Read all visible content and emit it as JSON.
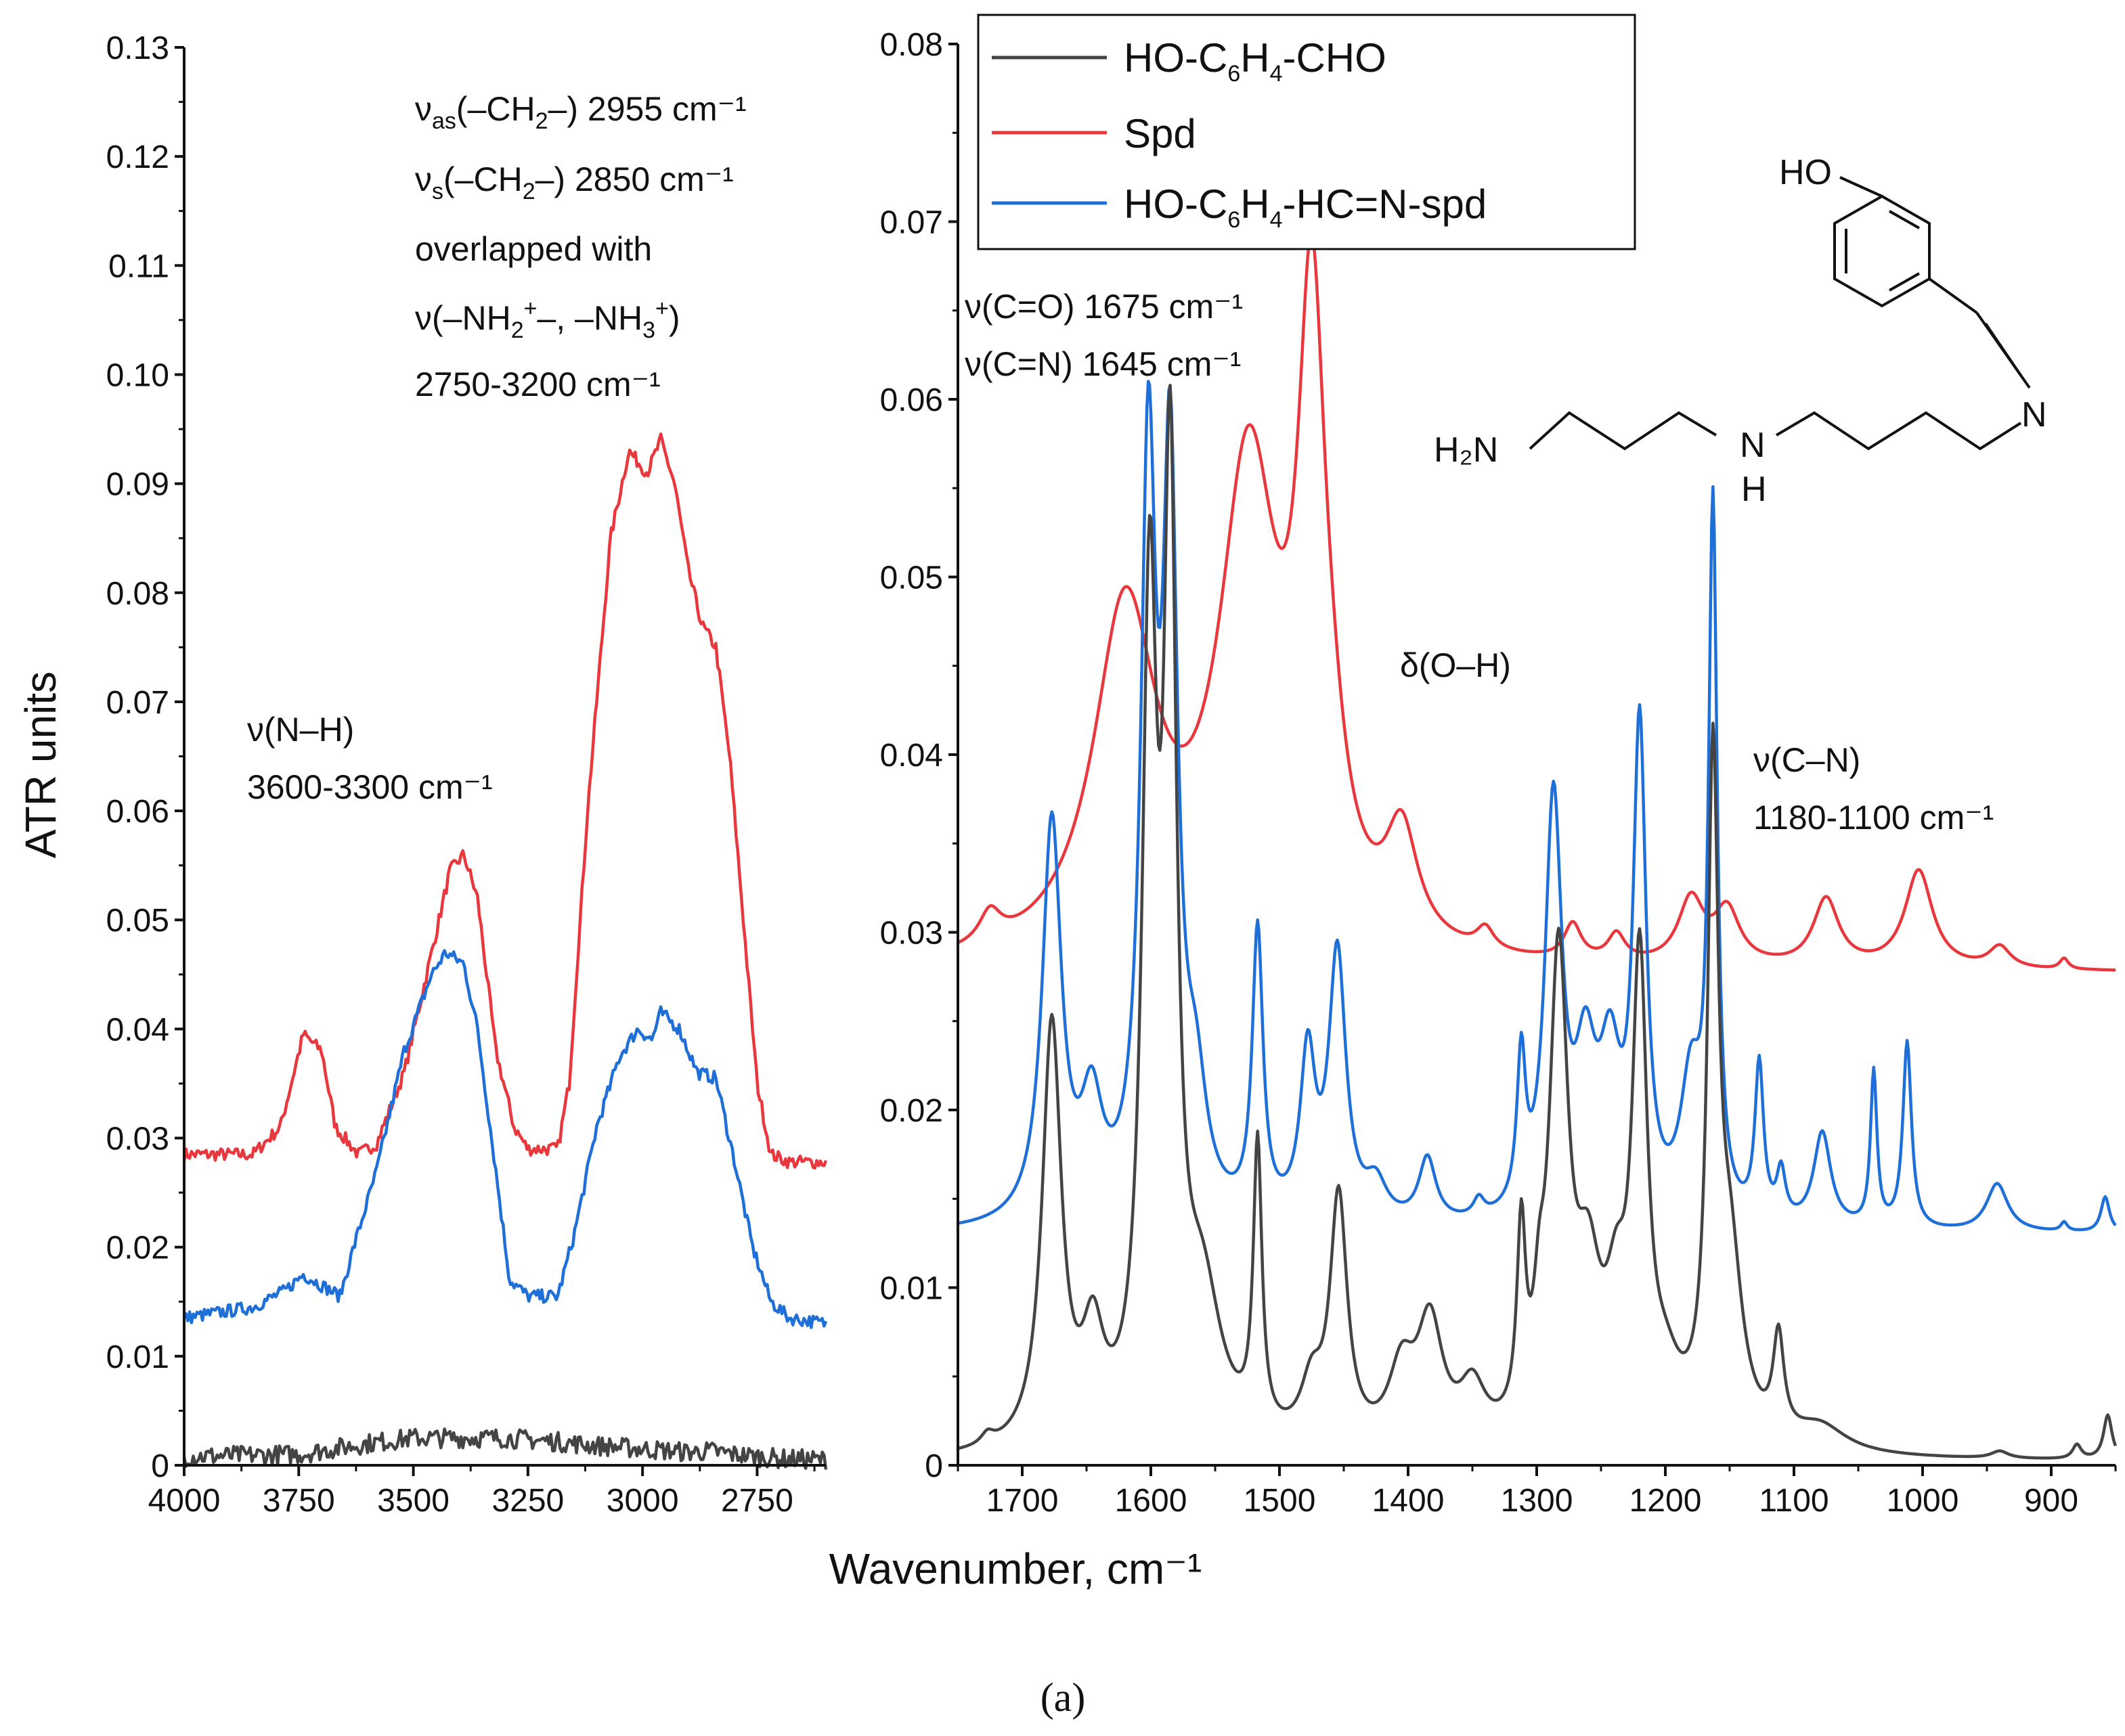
{
  "chart_data": {
    "type": "line",
    "ylabel": "ATR units",
    "xlabel": "Wavenumber, cm⁻¹",
    "panel_label": "(a)",
    "ylim_left": [
      0,
      0.13
    ],
    "ylim_right": [
      0,
      0.08
    ],
    "xlim_left": [
      4000,
      2600
    ],
    "xlim_right": [
      1750,
      850
    ],
    "yticks_left": [
      "0",
      "0.01",
      "0.02",
      "0.03",
      "0.04",
      "0.05",
      "0.06",
      "0.07",
      "0.08",
      "0.09",
      "0.10",
      "0.11",
      "0.12",
      "0.13"
    ],
    "yticks_right": [
      "0",
      "0.01",
      "0.02",
      "0.03",
      "0.04",
      "0.05",
      "0.06",
      "0.07",
      "0.08"
    ],
    "xticks_left": [
      "4000",
      "3750",
      "3500",
      "3250",
      "3000",
      "2750"
    ],
    "xticks_right": [
      "1700",
      "1600",
      "1500",
      "1400",
      "1300",
      "1200",
      "1100",
      "1000",
      "900"
    ],
    "legend": [
      {
        "label": "HO-C6H4-CHO",
        "color": "#444444"
      },
      {
        "label": "Spd",
        "color": "#e8383d"
      },
      {
        "label": "HO-C6H4-HC=N-spd",
        "color": "#1f6fd8"
      }
    ],
    "annotations": {
      "nh_1": "ν(N–H)",
      "nh_2": "3600-3300 cm⁻¹",
      "ch2_as": "ν(–CH₂–) 2955 cm⁻¹",
      "ch2_as_sub": "as",
      "ch2_s": "ν(–CH₂–) 2850 cm⁻¹",
      "ch2_s_sub": "s",
      "overlap": "overlapped with",
      "nh3": "ν(–NH₂⁺–, –NH₃⁺)",
      "range": "2750-3200 cm⁻¹",
      "co": "ν(C=O) 1675 cm⁻¹",
      "cn_dbl": "ν(C=N) 1645 cm⁻¹",
      "oh": "δ(O–H)",
      "cn_1": "ν(C–N)",
      "cn_2": "1180-1100 cm⁻¹"
    },
    "structure": {
      "ho": "HO",
      "h2n": "H₂N",
      "n": "N",
      "h": "H",
      "n_imine": "N"
    },
    "series_left": [
      {
        "name": "Spd",
        "color": "#e8383d",
        "noise": 0.0006,
        "points": [
          [
            4000,
            0.0285
          ],
          [
            3850,
            0.0285
          ],
          [
            3790,
            0.031
          ],
          [
            3740,
            0.0395
          ],
          [
            3700,
            0.038
          ],
          [
            3670,
            0.031
          ],
          [
            3620,
            0.0285
          ],
          [
            3580,
            0.0295
          ],
          [
            3520,
            0.036
          ],
          [
            3460,
            0.047
          ],
          [
            3420,
            0.0545
          ],
          [
            3390,
            0.056
          ],
          [
            3360,
            0.052
          ],
          [
            3320,
            0.038
          ],
          [
            3280,
            0.031
          ],
          [
            3250,
            0.029
          ],
          [
            3185,
            0.029
          ],
          [
            3160,
            0.035
          ],
          [
            3120,
            0.06
          ],
          [
            3070,
            0.085
          ],
          [
            3030,
            0.093
          ],
          [
            2990,
            0.091
          ],
          [
            2960,
            0.094
          ],
          [
            2930,
            0.09
          ],
          [
            2900,
            0.082
          ],
          [
            2870,
            0.077
          ],
          [
            2840,
            0.075
          ],
          [
            2810,
            0.065
          ],
          [
            2780,
            0.05
          ],
          [
            2750,
            0.035
          ],
          [
            2720,
            0.0285
          ],
          [
            2680,
            0.0278
          ],
          [
            2600,
            0.0278
          ]
        ]
      },
      {
        "name": "HO-C6H4-HC=N-spd",
        "color": "#1f6fd8",
        "noise": 0.0006,
        "points": [
          [
            4000,
            0.0135
          ],
          [
            3850,
            0.0145
          ],
          [
            3780,
            0.016
          ],
          [
            3740,
            0.0175
          ],
          [
            3700,
            0.0165
          ],
          [
            3660,
            0.0155
          ],
          [
            3630,
            0.02
          ],
          [
            3580,
            0.027
          ],
          [
            3520,
            0.038
          ],
          [
            3460,
            0.045
          ],
          [
            3430,
            0.047
          ],
          [
            3390,
            0.046
          ],
          [
            3360,
            0.04
          ],
          [
            3320,
            0.027
          ],
          [
            3290,
            0.017
          ],
          [
            3250,
            0.0155
          ],
          [
            3185,
            0.0155
          ],
          [
            3150,
            0.021
          ],
          [
            3100,
            0.031
          ],
          [
            3050,
            0.0375
          ],
          [
            3010,
            0.04
          ],
          [
            2980,
            0.039
          ],
          [
            2960,
            0.0415
          ],
          [
            2920,
            0.04
          ],
          [
            2880,
            0.036
          ],
          [
            2840,
            0.0355
          ],
          [
            2800,
            0.028
          ],
          [
            2760,
            0.02
          ],
          [
            2720,
            0.015
          ],
          [
            2680,
            0.0135
          ],
          [
            2600,
            0.013
          ]
        ]
      },
      {
        "name": "HO-C6H4-CHO",
        "color": "#444444",
        "noise": 0.0009,
        "points": [
          [
            4000,
            0.0008
          ],
          [
            3750,
            0.001
          ],
          [
            3600,
            0.002
          ],
          [
            3500,
            0.0025
          ],
          [
            3400,
            0.0025
          ],
          [
            3300,
            0.0025
          ],
          [
            3200,
            0.0022
          ],
          [
            3100,
            0.0018
          ],
          [
            3000,
            0.0015
          ],
          [
            2900,
            0.0012
          ],
          [
            2850,
            0.0013
          ],
          [
            2800,
            0.001
          ],
          [
            2700,
            0.0006
          ],
          [
            2600,
            0.0005
          ]
        ]
      }
    ],
    "series_right": [
      {
        "name": "Spd",
        "color": "#e8383d",
        "baseline": 0.0277,
        "peaks": [
          [
            1725,
            0.0017,
            10
          ],
          [
            1620,
            0.0193,
            30
          ],
          [
            1524,
            0.0267,
            28
          ],
          [
            1475,
            0.032,
            13
          ],
          [
            1460,
            0.004,
            15
          ],
          [
            1405,
            0.006,
            15
          ],
          [
            1340,
            0.0012,
            8
          ],
          [
            1272,
            0.002,
            8
          ],
          [
            1238,
            0.0015,
            8
          ],
          [
            1180,
            0.0036,
            12
          ],
          [
            1152,
            0.003,
            12
          ],
          [
            1075,
            0.0038,
            12
          ],
          [
            1003,
            0.0055,
            13
          ],
          [
            940,
            0.0012,
            10
          ],
          [
            890,
            0.0006,
            4
          ]
        ]
      },
      {
        "name": "HO-C6H4-HC=N-spd",
        "color": "#1f6fd8",
        "baseline": 0.013,
        "peaks": [
          [
            1677,
            0.0225,
            9
          ],
          [
            1646,
            0.006,
            10
          ],
          [
            1602,
            0.041,
            7
          ],
          [
            1585,
            0.04,
            7
          ],
          [
            1565,
            0.006,
            10
          ],
          [
            1517,
            0.016,
            5
          ],
          [
            1478,
            0.009,
            7
          ],
          [
            1455,
            0.015,
            8
          ],
          [
            1425,
            0.002,
            10
          ],
          [
            1385,
            0.0036,
            8
          ],
          [
            1345,
            0.001,
            5
          ],
          [
            1312,
            0.0083,
            4
          ],
          [
            1287,
            0.0233,
            8
          ],
          [
            1262,
            0.008,
            10
          ],
          [
            1243,
            0.008,
            10
          ],
          [
            1220,
            0.027,
            6
          ],
          [
            1180,
            0.0075,
            10
          ],
          [
            1163,
            0.0393,
            4
          ],
          [
            1127,
            0.0087,
            4
          ],
          [
            1110,
            0.0027,
            4
          ],
          [
            1078,
            0.0053,
            8
          ],
          [
            1038,
            0.0087,
            3
          ],
          [
            1012,
            0.0105,
            4
          ],
          [
            942,
            0.0027,
            10
          ],
          [
            890,
            0.0005,
            3
          ],
          [
            858,
            0.002,
            4
          ]
        ]
      },
      {
        "name": "HO-C6H4-CHO",
        "color": "#444444",
        "baseline": 0.0002,
        "peaks": [
          [
            1727,
            0.0006,
            6
          ],
          [
            1677,
            0.0238,
            9
          ],
          [
            1645,
            0.0055,
            10
          ],
          [
            1601,
            0.045,
            7
          ],
          [
            1585,
            0.05,
            6
          ],
          [
            1560,
            0.008,
            18
          ],
          [
            1517,
            0.016,
            4
          ],
          [
            1475,
            0.003,
            10
          ],
          [
            1454,
            0.0138,
            8
          ],
          [
            1405,
            0.004,
            12
          ],
          [
            1383,
            0.0067,
            12
          ],
          [
            1350,
            0.003,
            12
          ],
          [
            1312,
            0.0105,
            4
          ],
          [
            1298,
            0.004,
            5
          ],
          [
            1283,
            0.0265,
            9
          ],
          [
            1260,
            0.008,
            12
          ],
          [
            1238,
            0.006,
            10
          ],
          [
            1220,
            0.0255,
            7
          ],
          [
            1200,
            0.003,
            15
          ],
          [
            1163,
            0.0355,
            5
          ],
          [
            1150,
            0.01,
            12
          ],
          [
            1112,
            0.0055,
            5
          ],
          [
            1080,
            0.0015,
            25
          ],
          [
            940,
            0.0004,
            8
          ],
          [
            880,
            0.0008,
            4
          ],
          [
            856,
            0.0025,
            4
          ]
        ]
      }
    ]
  }
}
